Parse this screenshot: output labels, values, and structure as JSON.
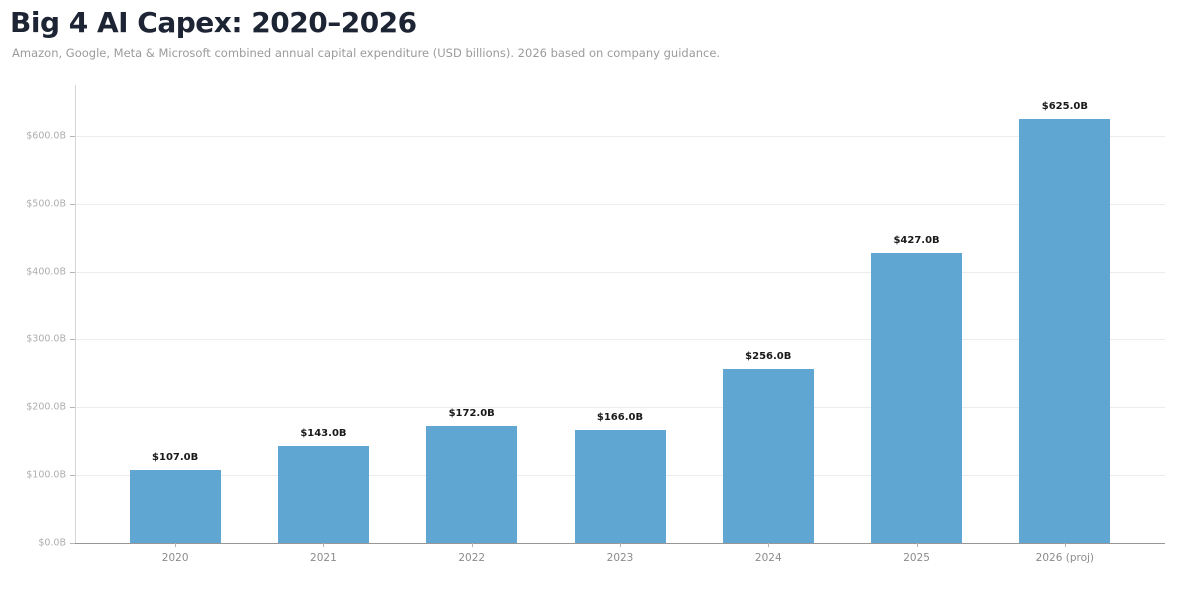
{
  "header": {
    "title": "Big 4 AI Capex: 2020–2026",
    "subtitle": "Amazon, Google, Meta & Microsoft combined annual capital expenditure (USD billions). 2026 based on company guidance."
  },
  "chart_data": {
    "type": "bar",
    "title": "Big 4 AI Capex: 2020–2026",
    "subtitle": "Amazon, Google, Meta & Microsoft combined annual capital expenditure (USD billions). 2026 based on company guidance.",
    "categories": [
      "2020",
      "2021",
      "2022",
      "2023",
      "2024",
      "2025",
      "2026 (proj)"
    ],
    "values": [
      107,
      143,
      172,
      166,
      256,
      427,
      625
    ],
    "bar_labels": [
      "$107.0B",
      "$143.0B",
      "$172.0B",
      "$166.0B",
      "$256.0B",
      "$427.0B",
      "$625.0B"
    ],
    "xlabel": "",
    "ylabel": "",
    "ylim": [
      0,
      675
    ],
    "y_tick_values": [
      0,
      100,
      200,
      300,
      400,
      500,
      600
    ],
    "y_tick_labels": [
      "$0.0B",
      "$100.0B",
      "$200.0B",
      "$300.0B",
      "$400.0B",
      "$500.0B",
      "$600.0B"
    ],
    "grid": true,
    "legend_position": "none",
    "bar_color": "#5fa6d3"
  },
  "colors": {
    "title": "#1d2433",
    "subtitle": "#9b9b9b",
    "bar": "#5fa6d3",
    "gridline": "#ececec",
    "x_axis_line": "#979797",
    "y_axis_line": "#d6d6d6",
    "tick_label": "#aeaeae",
    "value_label": "#1a1a1a",
    "background": "#ffffff"
  }
}
